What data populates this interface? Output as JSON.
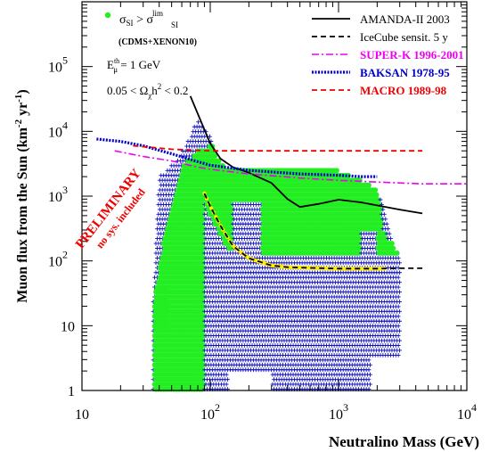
{
  "chart_data": {
    "type": "scatter",
    "xlabel": "Neutralino Mass (GeV)",
    "ylabel": "Muon flux from the Sun (km",
    "ylabel_sup1": "-2",
    "ylabel_mid": " yr",
    "ylabel_sup2": "-1",
    "ylabel_end": ")",
    "x_scale": "log",
    "y_scale": "log",
    "xlim": [
      10,
      10000
    ],
    "ylim": [
      1,
      1000000
    ],
    "x_ticks": [
      {
        "value": 10,
        "base": "10",
        "exp": ""
      },
      {
        "value": 100,
        "base": "10",
        "exp": "2"
      },
      {
        "value": 1000,
        "base": "10",
        "exp": "3"
      },
      {
        "value": 10000,
        "base": "10",
        "exp": "4"
      }
    ],
    "y_ticks": [
      {
        "value": 1,
        "base": "1",
        "exp": ""
      },
      {
        "value": 10,
        "base": "10",
        "exp": ""
      },
      {
        "value": 100,
        "base": "10",
        "exp": "2"
      },
      {
        "value": 1000,
        "base": "10",
        "exp": "3"
      },
      {
        "value": 10000,
        "base": "10",
        "exp": "4"
      },
      {
        "value": 100000,
        "base": "10",
        "exp": "5"
      }
    ],
    "annotations": {
      "preliminary": "PRELIMINARY",
      "no_sys": "no sys. included",
      "threshold_pre": "E",
      "threshold_sub": "μ",
      "threshold_sup": "th",
      "threshold_post": " = 1 GeV",
      "relic_pre": "0.05 < Ω",
      "relic_sub": "χ",
      "relic_mid": "h",
      "relic_sup": "2",
      "relic_post": " < 0.2"
    },
    "legend_points": {
      "sigma": "σ",
      "sub1": "SI",
      "gt": " > σ",
      "sub2": "SI",
      "sup2": "lim",
      "note": "(CDMS+XENON10)",
      "color": "#22ee22"
    },
    "series": [
      {
        "name": "AMANDA-II 2003",
        "color": "#000000",
        "style": "solid",
        "x": [
          70,
          85,
          100,
          120,
          150,
          200,
          300,
          400,
          500,
          700,
          1000,
          1500,
          2000,
          3000,
          4500
        ],
        "y": [
          35000,
          14000,
          6500,
          3800,
          2800,
          2300,
          1600,
          900,
          680,
          760,
          880,
          800,
          720,
          620,
          540
        ]
      },
      {
        "name": "IceCube sensit. 5 y",
        "color": "#000000",
        "style": "dashed",
        "x": [
          90,
          100,
          120,
          150,
          200,
          300,
          400,
          600,
          1000,
          2000,
          3000,
          4500
        ],
        "y": [
          1100,
          700,
          350,
          170,
          110,
          85,
          80,
          78,
          76,
          76,
          77,
          77
        ]
      },
      {
        "name": "SUPER-K 1996-2001",
        "color": "#ee00ee",
        "style": "dashdot",
        "x": [
          18,
          30,
          50,
          80,
          100,
          200,
          500,
          1000,
          2000,
          4500,
          10000
        ],
        "y": [
          5000,
          4100,
          3500,
          2800,
          2600,
          2200,
          1900,
          1750,
          1650,
          1550,
          1550
        ]
      },
      {
        "name": "BAKSAN 1978-95",
        "color": "#0000cc",
        "style": "dotted",
        "x": [
          13,
          20,
          30,
          50,
          80,
          100,
          200,
          500,
          1000,
          1500,
          2000
        ],
        "y": [
          7600,
          7000,
          6000,
          4500,
          3400,
          3000,
          2500,
          2200,
          2100,
          2000,
          2000
        ]
      },
      {
        "name": "MACRO 1989-98",
        "color": "#ee0000",
        "style": "dashed",
        "x": [
          25,
          50,
          100,
          200,
          500,
          1000,
          2000,
          4500
        ],
        "y": [
          6000,
          5300,
          5000,
          5000,
          5000,
          5000,
          5000,
          5000
        ]
      }
    ],
    "scan_points": {
      "blue_color": "#1010c0",
      "green_color": "#22ee22",
      "yellow_color": "#ffee00"
    }
  }
}
